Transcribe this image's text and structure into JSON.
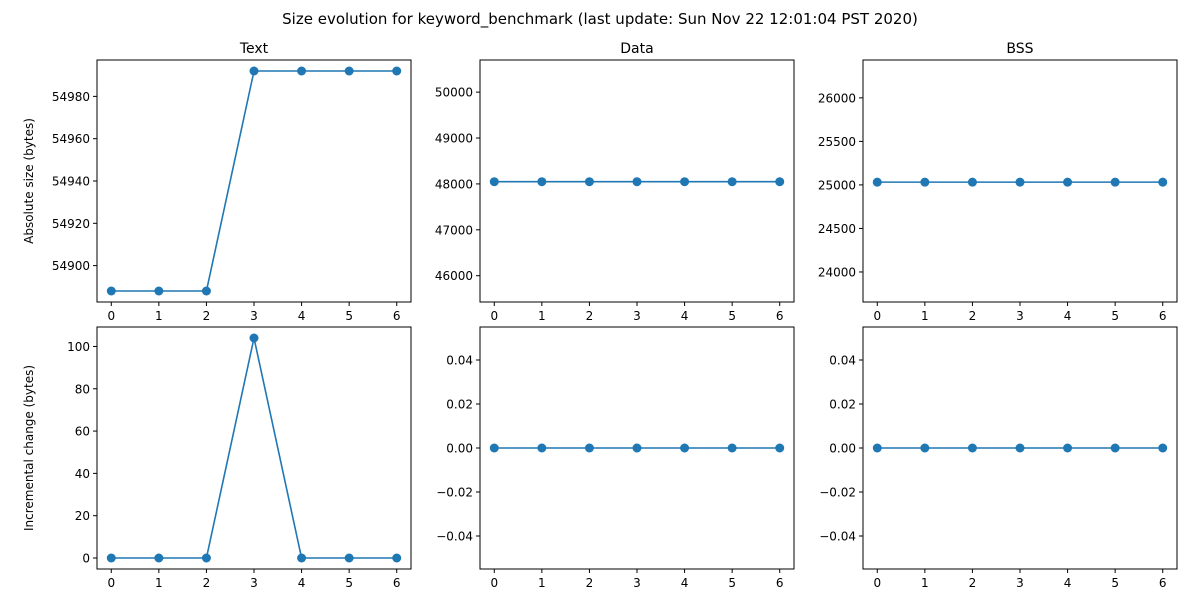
{
  "figure": {
    "suptitle": "Size evolution for keyword_benchmark (last update: Sun Nov 22 12:01:04 PST 2020)"
  },
  "colors": {
    "series": "#1f77b4",
    "axes": "#000000",
    "background": "#ffffff"
  },
  "chart_data": [
    {
      "type": "line",
      "title": "Text",
      "xlabel": "",
      "ylabel": "Absolute size (bytes)",
      "x": [
        0,
        1,
        2,
        3,
        4,
        5,
        6
      ],
      "series": [
        {
          "values": [
            54888,
            54888,
            54888,
            54992,
            54992,
            54992,
            54992
          ]
        }
      ],
      "xlim": [
        -0.3,
        6.3
      ],
      "ylim": [
        54882.8,
        54997.2
      ],
      "xticks": [
        "0",
        "1",
        "2",
        "3",
        "4",
        "5",
        "6"
      ],
      "yticks": [
        54900,
        54920,
        54940,
        54960,
        54980
      ],
      "ytick_labels": [
        "54900",
        "54920",
        "54940",
        "54960",
        "54980"
      ],
      "grid": false,
      "marker": "circle"
    },
    {
      "type": "line",
      "title": "Data",
      "xlabel": "",
      "ylabel": "",
      "x": [
        0,
        1,
        2,
        3,
        4,
        5,
        6
      ],
      "series": [
        {
          "values": [
            48048,
            48048,
            48048,
            48048,
            48048,
            48048,
            48048
          ]
        }
      ],
      "xlim": [
        -0.3,
        6.3
      ],
      "ylim": [
        45427,
        50700
      ],
      "xticks": [
        "0",
        "1",
        "2",
        "3",
        "4",
        "5",
        "6"
      ],
      "yticks": [
        46000,
        47000,
        48000,
        49000,
        50000
      ],
      "ytick_labels": [
        "46000",
        "47000",
        "48000",
        "49000",
        "50000"
      ],
      "grid": false,
      "marker": "circle"
    },
    {
      "type": "line",
      "title": "BSS",
      "xlabel": "",
      "ylabel": "",
      "x": [
        0,
        1,
        2,
        3,
        4,
        5,
        6
      ],
      "series": [
        {
          "values": [
            25032,
            25032,
            25032,
            25032,
            25032,
            25032,
            25032
          ]
        }
      ],
      "xlim": [
        -0.3,
        6.3
      ],
      "ylim": [
        23655,
        26435
      ],
      "xticks": [
        "0",
        "1",
        "2",
        "3",
        "4",
        "5",
        "6"
      ],
      "yticks": [
        24000,
        24500,
        25000,
        25500,
        26000
      ],
      "ytick_labels": [
        "24000",
        "24500",
        "25000",
        "25500",
        "26000"
      ],
      "grid": false,
      "marker": "circle"
    },
    {
      "type": "line",
      "title": "",
      "xlabel": "",
      "ylabel": "Incremental change (bytes)",
      "x": [
        0,
        1,
        2,
        3,
        4,
        5,
        6
      ],
      "series": [
        {
          "values": [
            0,
            0,
            0,
            104,
            0,
            0,
            0
          ]
        }
      ],
      "xlim": [
        -0.3,
        6.3
      ],
      "ylim": [
        -5.2,
        109.2
      ],
      "xticks": [
        "0",
        "1",
        "2",
        "3",
        "4",
        "5",
        "6"
      ],
      "yticks": [
        0,
        20,
        40,
        60,
        80,
        100
      ],
      "ytick_labels": [
        "0",
        "20",
        "40",
        "60",
        "80",
        "100"
      ],
      "grid": false,
      "marker": "circle"
    },
    {
      "type": "line",
      "title": "",
      "xlabel": "",
      "ylabel": "",
      "x": [
        0,
        1,
        2,
        3,
        4,
        5,
        6
      ],
      "series": [
        {
          "values": [
            0,
            0,
            0,
            0,
            0,
            0,
            0
          ]
        }
      ],
      "xlim": [
        -0.3,
        6.3
      ],
      "ylim": [
        -0.055,
        0.055
      ],
      "xticks": [
        "0",
        "1",
        "2",
        "3",
        "4",
        "5",
        "6"
      ],
      "yticks": [
        -0.04,
        -0.02,
        0,
        0.02,
        0.04
      ],
      "ytick_labels": [
        "−0.04",
        "−0.02",
        "0.00",
        "0.02",
        "0.04"
      ],
      "grid": false,
      "marker": "circle"
    },
    {
      "type": "line",
      "title": "",
      "xlabel": "",
      "ylabel": "",
      "x": [
        0,
        1,
        2,
        3,
        4,
        5,
        6
      ],
      "series": [
        {
          "values": [
            0,
            0,
            0,
            0,
            0,
            0,
            0
          ]
        }
      ],
      "xlim": [
        -0.3,
        6.3
      ],
      "ylim": [
        -0.055,
        0.055
      ],
      "xticks": [
        "0",
        "1",
        "2",
        "3",
        "4",
        "5",
        "6"
      ],
      "yticks": [
        -0.04,
        -0.02,
        0,
        0.02,
        0.04
      ],
      "ytick_labels": [
        "−0.04",
        "−0.02",
        "0.00",
        "0.02",
        "0.04"
      ],
      "grid": false,
      "marker": "circle"
    }
  ]
}
